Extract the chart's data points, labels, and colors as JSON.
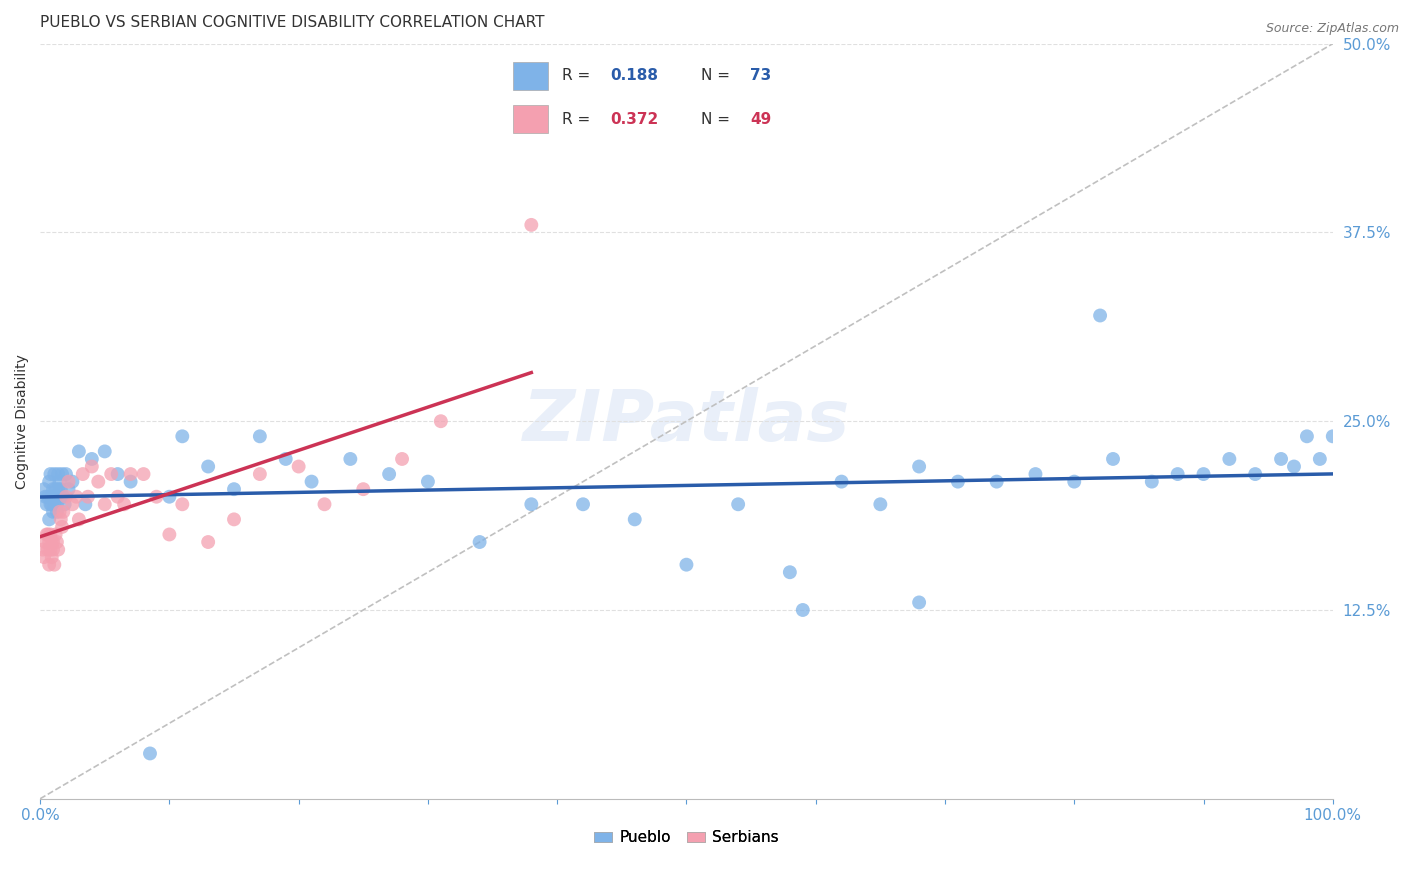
{
  "title": "PUEBLO VS SERBIAN COGNITIVE DISABILITY CORRELATION CHART",
  "source": "Source: ZipAtlas.com",
  "tick_color": "#5b9bd5",
  "ylabel": "Cognitive Disability",
  "xlim": [
    0,
    1.0
  ],
  "ylim": [
    0,
    0.5
  ],
  "xticks": [
    0.0,
    0.1,
    0.2,
    0.3,
    0.4,
    0.5,
    0.6,
    0.7,
    0.8,
    0.9,
    1.0
  ],
  "xtick_labels_show": {
    "0.0": "0.0%",
    "1.0": "100.0%"
  },
  "yticks": [
    0.125,
    0.25,
    0.375,
    0.5
  ],
  "ytick_labels": [
    "12.5%",
    "25.0%",
    "37.5%",
    "50.0%"
  ],
  "pueblo_color": "#7fb3e8",
  "serbian_color": "#f4a0b0",
  "pueblo_line_color": "#2a5caa",
  "serbian_line_color": "#cc3355",
  "dashed_line_color": "#c0c0c0",
  "legend_R_pueblo": "0.188",
  "legend_N_pueblo": "73",
  "legend_R_serbian": "0.372",
  "legend_N_serbian": "49",
  "watermark": "ZIPatlas",
  "background_color": "#ffffff",
  "grid_color": "#e0e0e0",
  "title_fontsize": 11,
  "axis_label_fontsize": 10,
  "tick_fontsize": 11,
  "pueblo_x": [
    0.003,
    0.004,
    0.005,
    0.006,
    0.007,
    0.007,
    0.008,
    0.008,
    0.009,
    0.009,
    0.01,
    0.01,
    0.011,
    0.011,
    0.012,
    0.012,
    0.013,
    0.013,
    0.014,
    0.014,
    0.015,
    0.016,
    0.017,
    0.018,
    0.019,
    0.02,
    0.022,
    0.025,
    0.03,
    0.035,
    0.04,
    0.05,
    0.06,
    0.07,
    0.085,
    0.1,
    0.11,
    0.13,
    0.15,
    0.17,
    0.19,
    0.21,
    0.24,
    0.27,
    0.3,
    0.34,
    0.38,
    0.42,
    0.46,
    0.5,
    0.54,
    0.58,
    0.62,
    0.65,
    0.68,
    0.71,
    0.74,
    0.77,
    0.8,
    0.83,
    0.86,
    0.88,
    0.9,
    0.92,
    0.94,
    0.96,
    0.97,
    0.98,
    0.99,
    1.0,
    0.59,
    0.68,
    0.82
  ],
  "pueblo_y": [
    0.205,
    0.2,
    0.195,
    0.2,
    0.185,
    0.21,
    0.195,
    0.215,
    0.2,
    0.195,
    0.205,
    0.19,
    0.215,
    0.195,
    0.2,
    0.205,
    0.195,
    0.19,
    0.215,
    0.205,
    0.21,
    0.205,
    0.215,
    0.2,
    0.195,
    0.215,
    0.205,
    0.21,
    0.23,
    0.195,
    0.225,
    0.23,
    0.215,
    0.21,
    0.03,
    0.2,
    0.24,
    0.22,
    0.205,
    0.24,
    0.225,
    0.21,
    0.225,
    0.215,
    0.21,
    0.17,
    0.195,
    0.195,
    0.185,
    0.155,
    0.195,
    0.15,
    0.21,
    0.195,
    0.22,
    0.21,
    0.21,
    0.215,
    0.21,
    0.225,
    0.21,
    0.215,
    0.215,
    0.225,
    0.215,
    0.225,
    0.22,
    0.24,
    0.225,
    0.24,
    0.125,
    0.13,
    0.32
  ],
  "serbian_x": [
    0.002,
    0.003,
    0.004,
    0.005,
    0.006,
    0.006,
    0.007,
    0.007,
    0.008,
    0.008,
    0.009,
    0.009,
    0.01,
    0.01,
    0.011,
    0.012,
    0.013,
    0.014,
    0.015,
    0.016,
    0.017,
    0.018,
    0.02,
    0.022,
    0.025,
    0.028,
    0.03,
    0.033,
    0.037,
    0.04,
    0.045,
    0.05,
    0.055,
    0.06,
    0.065,
    0.07,
    0.08,
    0.09,
    0.1,
    0.11,
    0.13,
    0.15,
    0.17,
    0.2,
    0.22,
    0.25,
    0.28,
    0.31,
    0.38
  ],
  "serbian_y": [
    0.165,
    0.16,
    0.17,
    0.175,
    0.165,
    0.175,
    0.17,
    0.155,
    0.165,
    0.175,
    0.17,
    0.16,
    0.165,
    0.17,
    0.155,
    0.175,
    0.17,
    0.165,
    0.19,
    0.185,
    0.18,
    0.19,
    0.2,
    0.21,
    0.195,
    0.2,
    0.185,
    0.215,
    0.2,
    0.22,
    0.21,
    0.195,
    0.215,
    0.2,
    0.195,
    0.215,
    0.215,
    0.2,
    0.175,
    0.195,
    0.17,
    0.185,
    0.215,
    0.22,
    0.195,
    0.205,
    0.225,
    0.25,
    0.38
  ]
}
